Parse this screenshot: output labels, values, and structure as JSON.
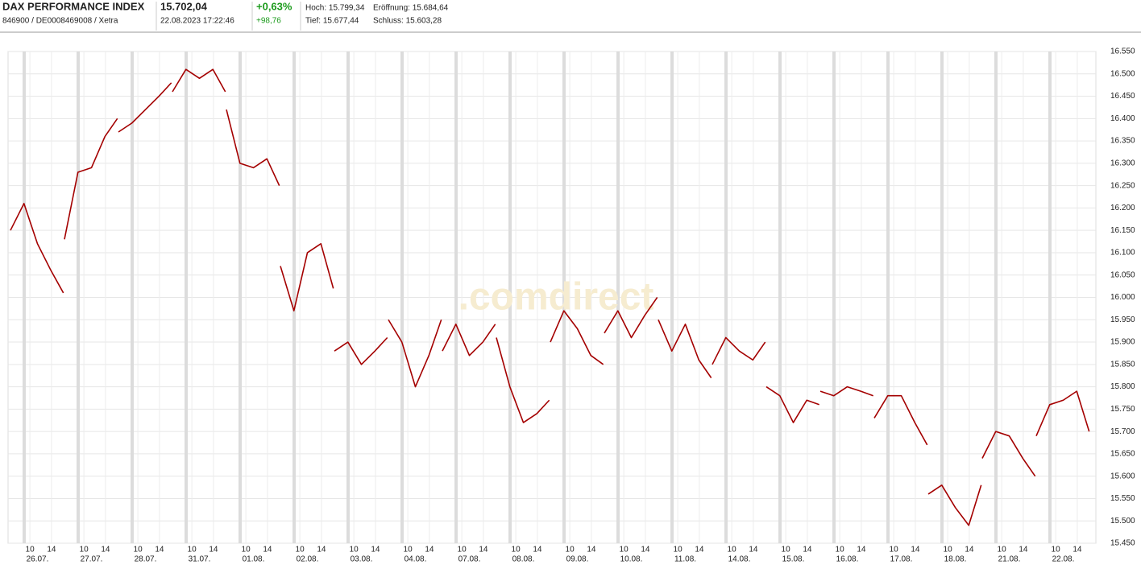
{
  "header": {
    "name": "DAX PERFORMANCE INDEX",
    "ids": "846900 / DE0008469008 / Xetra",
    "price": "15.702,04",
    "timestamp": "22.08.2023 17:22:46",
    "change_pct": "+0,63%",
    "change_abs": "+98,76",
    "high": "Hoch: 15.799,34",
    "open": "Eröffnung: 15.684,64",
    "low": "Tief: 15.677,44",
    "close": "Schluss: 15.603,28"
  },
  "chart_data": {
    "type": "line",
    "watermark": ".comdirect",
    "grid": true,
    "categories": [
      "26.07.",
      "27.07.",
      "28.07.",
      "31.07.",
      "01.08.",
      "02.08.",
      "03.08.",
      "04.08.",
      "07.08.",
      "08.08.",
      "09.08.",
      "10.08.",
      "11.08.",
      "14.08.",
      "15.08.",
      "16.08.",
      "17.08.",
      "18.08.",
      "21.08.",
      "22.08."
    ],
    "xlim": [
      0,
      20
    ],
    "xticks": [
      {
        "value": 0.36,
        "label": "10"
      },
      {
        "value": 0.76,
        "label": "14"
      },
      {
        "value": 1.36,
        "label": "10"
      },
      {
        "value": 1.76,
        "label": "14"
      },
      {
        "value": 2.36,
        "label": "10"
      },
      {
        "value": 2.76,
        "label": "14"
      },
      {
        "value": 3.36,
        "label": "10"
      },
      {
        "value": 3.76,
        "label": "14"
      },
      {
        "value": 4.36,
        "label": "10"
      },
      {
        "value": 4.76,
        "label": "14"
      },
      {
        "value": 5.36,
        "label": "10"
      },
      {
        "value": 5.76,
        "label": "14"
      },
      {
        "value": 6.36,
        "label": "10"
      },
      {
        "value": 6.76,
        "label": "14"
      },
      {
        "value": 7.36,
        "label": "10"
      },
      {
        "value": 7.76,
        "label": "14"
      },
      {
        "value": 8.36,
        "label": "10"
      },
      {
        "value": 8.76,
        "label": "14"
      },
      {
        "value": 9.36,
        "label": "10"
      },
      {
        "value": 9.76,
        "label": "14"
      },
      {
        "value": 10.36,
        "label": "10"
      },
      {
        "value": 10.76,
        "label": "14"
      },
      {
        "value": 11.36,
        "label": "10"
      },
      {
        "value": 11.76,
        "label": "14"
      },
      {
        "value": 12.36,
        "label": "10"
      },
      {
        "value": 12.76,
        "label": "14"
      },
      {
        "value": 13.36,
        "label": "10"
      },
      {
        "value": 13.76,
        "label": "14"
      },
      {
        "value": 14.36,
        "label": "10"
      },
      {
        "value": 14.76,
        "label": "14"
      },
      {
        "value": 15.36,
        "label": "10"
      },
      {
        "value": 15.76,
        "label": "14"
      },
      {
        "value": 16.36,
        "label": "10"
      },
      {
        "value": 16.76,
        "label": "14"
      },
      {
        "value": 17.36,
        "label": "10"
      },
      {
        "value": 17.76,
        "label": "14"
      },
      {
        "value": 18.36,
        "label": "10"
      },
      {
        "value": 18.76,
        "label": "14"
      },
      {
        "value": 19.36,
        "label": "10"
      },
      {
        "value": 19.76,
        "label": "14"
      }
    ],
    "ylim": [
      15450,
      16550
    ],
    "yticks": [
      {
        "value": 15450,
        "label": "15.450"
      },
      {
        "value": 15500,
        "label": "15.500"
      },
      {
        "value": 15550,
        "label": "15.550"
      },
      {
        "value": 15600,
        "label": "15.600"
      },
      {
        "value": 15650,
        "label": "15.650"
      },
      {
        "value": 15700,
        "label": "15.700"
      },
      {
        "value": 15750,
        "label": "15.750"
      },
      {
        "value": 15800,
        "label": "15.800"
      },
      {
        "value": 15850,
        "label": "15.850"
      },
      {
        "value": 15900,
        "label": "15.900"
      },
      {
        "value": 15950,
        "label": "15.950"
      },
      {
        "value": 16000,
        "label": "16.000"
      },
      {
        "value": 16050,
        "label": "16.050"
      },
      {
        "value": 16100,
        "label": "16.100"
      },
      {
        "value": 16150,
        "label": "16.150"
      },
      {
        "value": 16200,
        "label": "16.200"
      },
      {
        "value": 16250,
        "label": "16.250"
      },
      {
        "value": 16300,
        "label": "16.300"
      },
      {
        "value": 16350,
        "label": "16.350"
      },
      {
        "value": 16400,
        "label": "16.400"
      },
      {
        "value": 16450,
        "label": "16.450"
      },
      {
        "value": 16500,
        "label": "16.500"
      },
      {
        "value": 16550,
        "label": "16.550"
      }
    ],
    "x": [
      0,
      0.25,
      0.5,
      0.75,
      0.98,
      0.99,
      1,
      1.25,
      1.5,
      1.75,
      1.98,
      1.99,
      2,
      2.25,
      2.5,
      2.75,
      2.98,
      2.99,
      3,
      3.25,
      3.5,
      3.75,
      3.98,
      3.99,
      4,
      4.25,
      4.5,
      4.75,
      4.98,
      4.99,
      5,
      5.25,
      5.5,
      5.75,
      5.98,
      5.99,
      6,
      6.25,
      6.5,
      6.75,
      6.98,
      6.99,
      7,
      7.25,
      7.5,
      7.75,
      7.98,
      7.99,
      8,
      8.25,
      8.5,
      8.75,
      8.98,
      8.99,
      9,
      9.25,
      9.5,
      9.75,
      9.98,
      9.99,
      10,
      10.25,
      10.5,
      10.75,
      10.98,
      10.99,
      11,
      11.25,
      11.5,
      11.75,
      11.98,
      11.99,
      12,
      12.25,
      12.5,
      12.75,
      12.98,
      12.99,
      13,
      13.25,
      13.5,
      13.75,
      13.98,
      13.99,
      14,
      14.25,
      14.5,
      14.75,
      14.98,
      14.99,
      15,
      15.25,
      15.5,
      15.75,
      15.98,
      15.99,
      16,
      16.25,
      16.5,
      16.75,
      16.98,
      16.99,
      17,
      17.25,
      17.5,
      17.75,
      17.98,
      17.99,
      18,
      18.25,
      18.5,
      18.75,
      18.98,
      18.99,
      19,
      19.25,
      19.5,
      19.75,
      19.98
    ],
    "series": [
      {
        "name": "DAX",
        "color": "#a40000",
        "values": [
          16150,
          16210,
          16120,
          16060,
          16010,
          null,
          16130,
          16280,
          16290,
          16360,
          16400,
          null,
          16370,
          16390,
          16420,
          16450,
          16480,
          null,
          16460,
          16510,
          16490,
          16510,
          16460,
          null,
          16420,
          16300,
          16290,
          16310,
          16250,
          null,
          16070,
          15970,
          16100,
          16120,
          16020,
          null,
          15880,
          15900,
          15850,
          15880,
          15910,
          null,
          15950,
          15900,
          15800,
          15870,
          15950,
          null,
          15880,
          15940,
          15870,
          15900,
          15940,
          null,
          15910,
          15800,
          15720,
          15740,
          15770,
          null,
          15900,
          15970,
          15930,
          15870,
          15850,
          null,
          15920,
          15970,
          15910,
          15960,
          16000,
          null,
          15950,
          15880,
          15940,
          15860,
          15820,
          null,
          15850,
          15910,
          15880,
          15860,
          15900,
          null,
          15800,
          15780,
          15720,
          15770,
          15760,
          null,
          15790,
          15780,
          15800,
          15790,
          15780,
          null,
          15730,
          15780,
          15780,
          15720,
          15670,
          null,
          15560,
          15580,
          15530,
          15490,
          15580,
          null,
          15640,
          15700,
          15690,
          15640,
          15600,
          null,
          15690,
          15760,
          15770,
          15790,
          15700
        ]
      }
    ]
  }
}
